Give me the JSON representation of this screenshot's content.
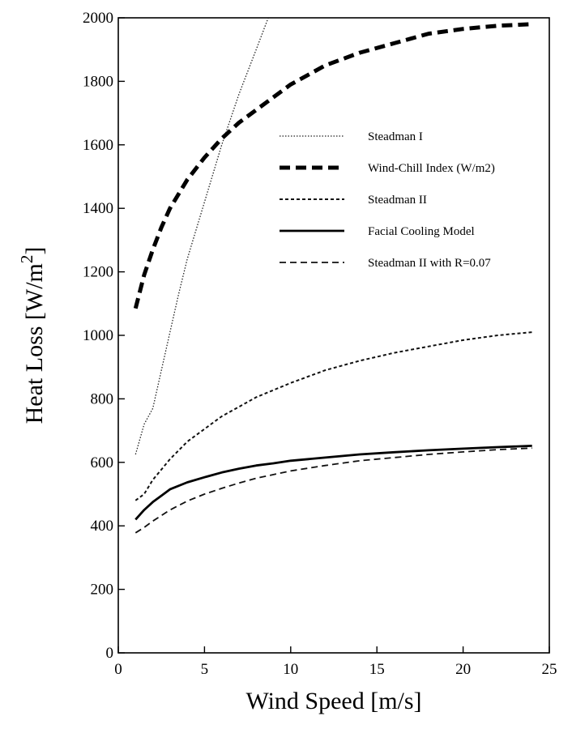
{
  "chart_data": {
    "type": "line",
    "xlabel": "Wind Speed [m/s]",
    "ylabel": "Heat Loss [W/m2]",
    "xlim": [
      0,
      25
    ],
    "ylim": [
      0,
      2000
    ],
    "xticks": [
      0,
      5,
      10,
      15,
      20,
      25
    ],
    "yticks": [
      0,
      200,
      400,
      600,
      800,
      1000,
      1200,
      1400,
      1600,
      1800,
      2000
    ],
    "grid": false,
    "legend_position": "right, upper-middle inside plot",
    "series": [
      {
        "name": "Steadman I",
        "style": "dotted-thin",
        "x": [
          1,
          1.5,
          2,
          2.5,
          3,
          3.5,
          4,
          5,
          6,
          7,
          8,
          8.7
        ],
        "y": [
          625,
          720,
          770,
          890,
          1010,
          1130,
          1240,
          1420,
          1600,
          1760,
          1900,
          2000
        ]
      },
      {
        "name": "Wind-Chill Index (W/m2)",
        "style": "dashed-thick",
        "x": [
          1,
          1.5,
          2,
          2.5,
          3,
          4,
          5,
          6,
          7,
          8,
          9,
          10,
          12,
          14,
          16,
          18,
          20,
          22,
          24
        ],
        "y": [
          1085,
          1190,
          1270,
          1340,
          1400,
          1490,
          1560,
          1620,
          1670,
          1710,
          1750,
          1790,
          1850,
          1890,
          1920,
          1950,
          1965,
          1975,
          1980
        ]
      },
      {
        "name": "Steadman II",
        "style": "dashed-fine",
        "x": [
          1,
          1.5,
          2,
          3,
          4,
          5,
          6,
          7,
          8,
          10,
          12,
          14,
          16,
          18,
          20,
          22,
          24
        ],
        "y": [
          480,
          500,
          545,
          610,
          665,
          705,
          745,
          775,
          805,
          850,
          890,
          920,
          945,
          965,
          985,
          1000,
          1010
        ]
      },
      {
        "name": "Facial Cooling Model",
        "style": "solid",
        "x": [
          1,
          1.5,
          2,
          2.5,
          3,
          4,
          5,
          6,
          7,
          8,
          9,
          10,
          12,
          14,
          16,
          18,
          20,
          22,
          24
        ],
        "y": [
          420,
          450,
          475,
          495,
          515,
          537,
          553,
          568,
          580,
          590,
          597,
          605,
          615,
          625,
          632,
          638,
          643,
          648,
          652
        ]
      },
      {
        "name": "Steadman II with R=0.07",
        "style": "dashed-medium",
        "x": [
          1,
          1.5,
          2,
          3,
          4,
          5,
          6,
          7,
          8,
          10,
          12,
          14,
          16,
          18,
          20,
          22,
          24
        ],
        "y": [
          378,
          395,
          415,
          450,
          478,
          500,
          518,
          535,
          550,
          573,
          590,
          605,
          615,
          625,
          633,
          640,
          645
        ]
      }
    ]
  }
}
